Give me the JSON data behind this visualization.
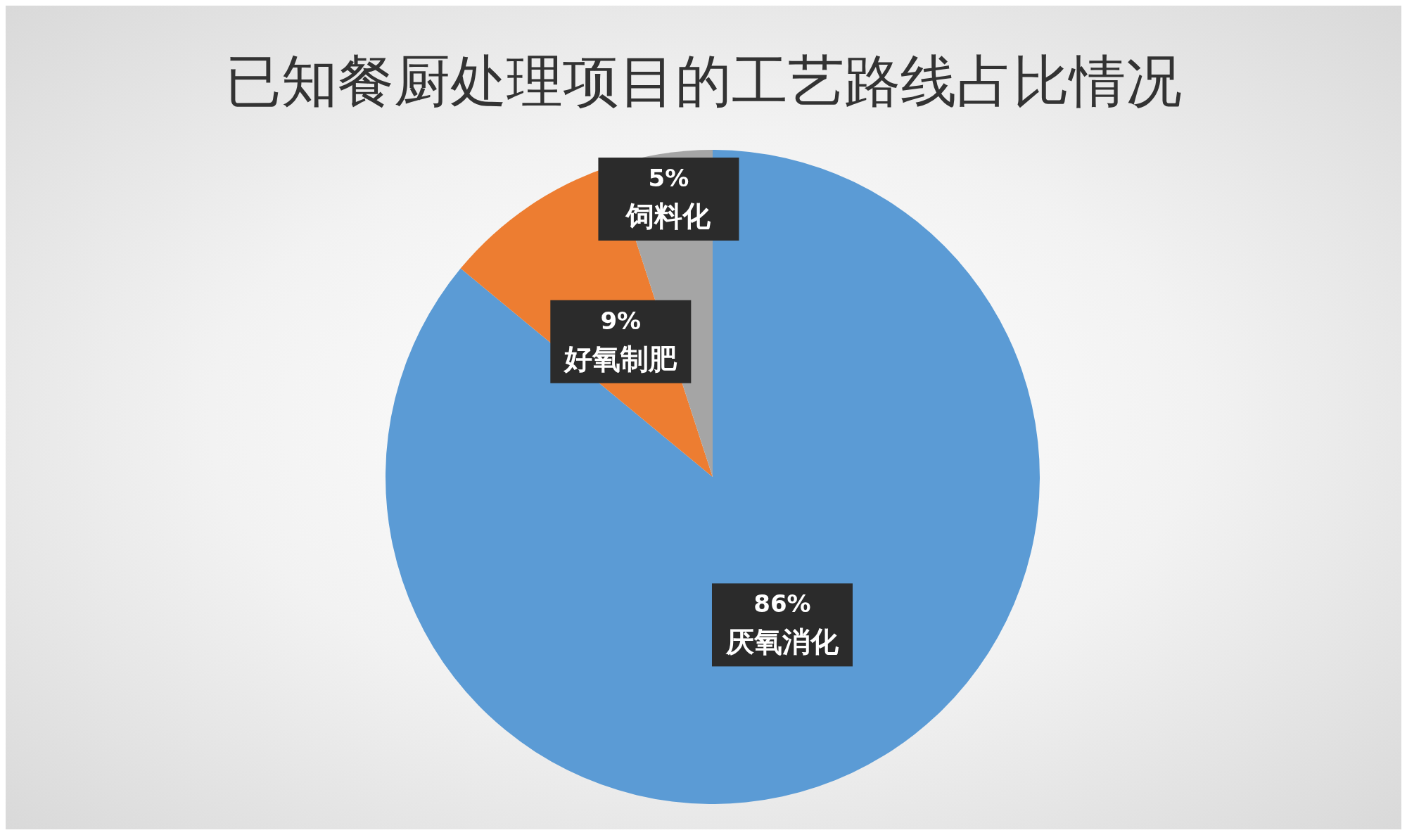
{
  "chart_data": {
    "type": "pie",
    "title": "已知餐厨处理项目的工艺路线占比情况",
    "categories": [
      "厌氧消化",
      "好氧制肥",
      "饲料化"
    ],
    "values": [
      86,
      9,
      5
    ],
    "colors": [
      "#5b9bd5",
      "#ed7d31",
      "#a5a5a5"
    ],
    "value_labels": [
      "86%",
      "9%",
      "5%"
    ]
  }
}
